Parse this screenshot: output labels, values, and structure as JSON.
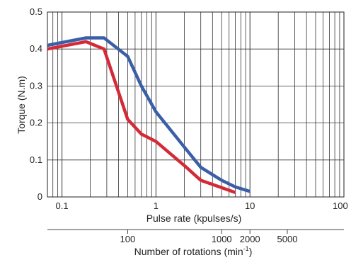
{
  "chart_data": {
    "type": "line",
    "xscale": "log",
    "xlim": [
      0.07,
      100
    ],
    "ylim": [
      0,
      0.5
    ],
    "xlabel": "Pulse rate (kpulses/s)",
    "ylabel": "Torque (N.m)",
    "x_ticks": [
      {
        "value": 0.1,
        "label": "0.1"
      },
      {
        "value": 1,
        "label": "1"
      },
      {
        "value": 10,
        "label": "10"
      },
      {
        "value": 100,
        "label": "100"
      }
    ],
    "y_ticks": [
      {
        "value": 0,
        "label": "0"
      },
      {
        "value": 0.1,
        "label": "0.1"
      },
      {
        "value": 0.2,
        "label": "0.2"
      },
      {
        "value": 0.3,
        "label": "0.3"
      },
      {
        "value": 0.4,
        "label": "0.4"
      },
      {
        "value": 0.5,
        "label": "0.5"
      }
    ],
    "grid": true,
    "secondary_axis": {
      "label_main": "Number of rotations (min",
      "label_sup": "-1",
      "label_tail": ")",
      "ticks": [
        {
          "value": 100,
          "label": "100",
          "at_pulse": 0.5
        },
        {
          "value": 1000,
          "label": "1000",
          "at_pulse": 5
        },
        {
          "value": 2000,
          "label": "2000",
          "at_pulse": 10
        },
        {
          "value": 5000,
          "label": "5000",
          "at_pulse": 25
        }
      ]
    },
    "series": [
      {
        "color": "#3a5ea8",
        "x": [
          0.07,
          0.18,
          0.28,
          0.5,
          0.7,
          1.0,
          2.0,
          3.0,
          5.0,
          7.0,
          10.0
        ],
        "y": [
          0.41,
          0.43,
          0.43,
          0.38,
          0.3,
          0.23,
          0.135,
          0.08,
          0.045,
          0.027,
          0.015
        ]
      },
      {
        "color": "#d42a38",
        "x": [
          0.07,
          0.18,
          0.28,
          0.38,
          0.5,
          0.7,
          1.0,
          2.0,
          3.0,
          5.0,
          7.0
        ],
        "y": [
          0.4,
          0.42,
          0.4,
          0.3,
          0.21,
          0.17,
          0.15,
          0.085,
          0.045,
          0.025,
          0.012
        ]
      }
    ]
  }
}
